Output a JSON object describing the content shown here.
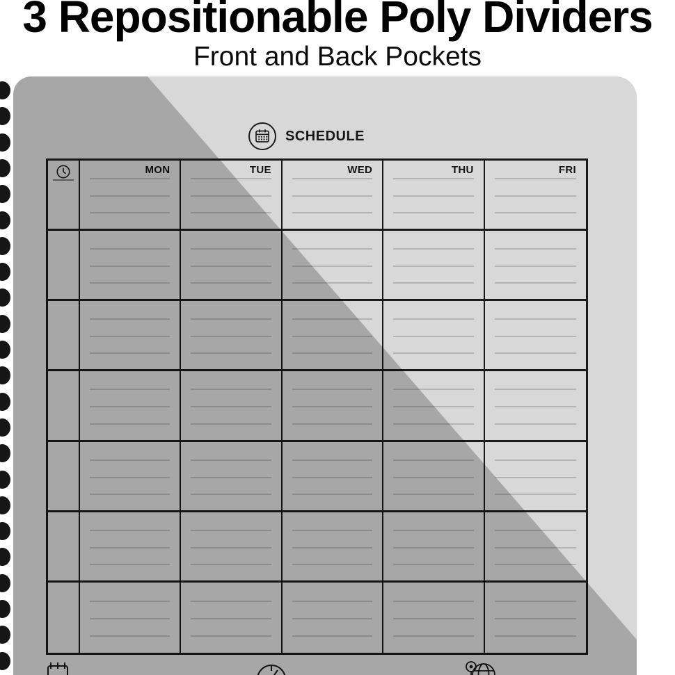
{
  "header": {
    "title": "3 Repositionable Poly Dividers",
    "subtitle": "Front and Back Pockets"
  },
  "page": {
    "section": {
      "icon": "calendar-icon",
      "title": "SCHEDULE"
    },
    "table": {
      "time_icon": "clock-icon",
      "day_headers": [
        "MON",
        "TUE",
        "WED",
        "THU",
        "FRI"
      ],
      "body_row_count": 6,
      "writing_lines_per_cell": 3
    },
    "footer_icons": [
      "calendar-icon",
      "clock-icon",
      "globe-icon"
    ],
    "binding_ring_count": 23
  },
  "colors": {
    "background": "#ffffff",
    "page_light": "#d8d8d8",
    "diagonal_shade": "rgba(0,0,0,0.225)",
    "table_border": "#1a1a1a",
    "writing_line": "rgba(0,0,0,0.17)",
    "ink": "#111111"
  }
}
